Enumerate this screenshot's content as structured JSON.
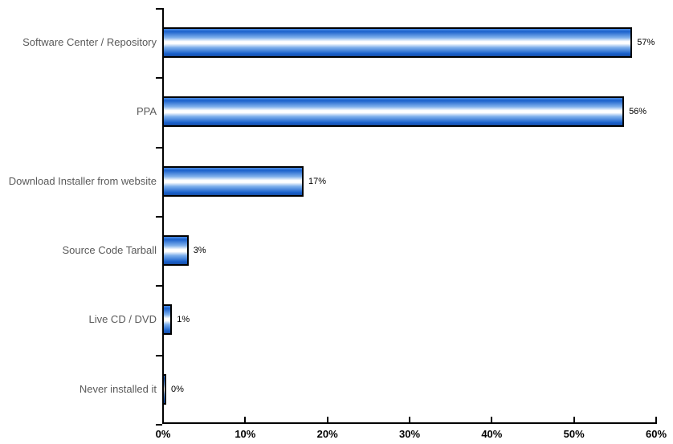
{
  "chart_data": {
    "type": "bar",
    "orientation": "horizontal",
    "title": "",
    "categories": [
      "Software Center / Repository",
      "PPA",
      "Download Installer from website",
      "Source Code Tarball",
      "Live CD / DVD",
      "Never installed it"
    ],
    "values": [
      57,
      56,
      17,
      3,
      1,
      0
    ],
    "value_labels": [
      "57%",
      "56%",
      "17%",
      "3%",
      "1%",
      "0%"
    ],
    "x_tick_labels": [
      "0%",
      "10%",
      "20%",
      "30%",
      "40%",
      "50%",
      "60%"
    ],
    "xlabel": "",
    "ylabel": "",
    "xlim": [
      0,
      60
    ],
    "grid": false,
    "legend": false
  },
  "colors": {
    "bar_blue": "#1b62cc",
    "bar_blue_deep": "#174fa8",
    "bar_blue_soft": "#7fb0ec",
    "bar_highlight": "#ffffff",
    "axis": "#000000",
    "cat_label": "#5a5a5a",
    "val_label": "#000000"
  }
}
